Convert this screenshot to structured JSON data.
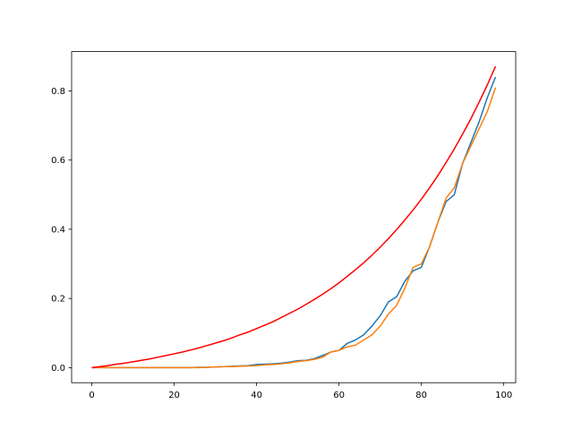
{
  "chart_data": {
    "type": "line",
    "x": [
      0,
      2,
      4,
      6,
      8,
      10,
      12,
      14,
      16,
      18,
      20,
      22,
      24,
      26,
      28,
      30,
      32,
      34,
      36,
      38,
      40,
      42,
      44,
      46,
      48,
      50,
      52,
      54,
      56,
      58,
      60,
      62,
      64,
      66,
      68,
      70,
      72,
      74,
      76,
      78,
      80,
      82,
      84,
      86,
      88,
      90,
      92,
      94,
      96,
      98
    ],
    "series": [
      {
        "color": "#1f77b4",
        "values": [
          0,
          0,
          0,
          0,
          0,
          0,
          0,
          0,
          0,
          0,
          0,
          0,
          0,
          0.001,
          0.001,
          0.002,
          0.003,
          0.004,
          0.005,
          0.006,
          0.009,
          0.01,
          0.011,
          0.013,
          0.016,
          0.02,
          0.021,
          0.026,
          0.035,
          0.045,
          0.05,
          0.07,
          0.08,
          0.095,
          0.12,
          0.15,
          0.19,
          0.205,
          0.25,
          0.28,
          0.29,
          0.35,
          0.42,
          0.48,
          0.5,
          0.59,
          0.65,
          0.71,
          0.78,
          0.84
        ]
      },
      {
        "color": "#ff7f0e",
        "values": [
          0,
          0,
          0,
          0,
          0,
          0,
          0,
          0,
          0,
          0,
          0,
          0,
          0,
          0,
          0.001,
          0.002,
          0.003,
          0.003,
          0.004,
          0.005,
          0.006,
          0.008,
          0.009,
          0.011,
          0.014,
          0.018,
          0.02,
          0.024,
          0.03,
          0.045,
          0.05,
          0.06,
          0.065,
          0.08,
          0.095,
          0.12,
          0.155,
          0.18,
          0.23,
          0.29,
          0.3,
          0.35,
          0.42,
          0.49,
          0.52,
          0.59,
          0.64,
          0.69,
          0.74,
          0.81
        ]
      },
      {
        "color": "#ff0000",
        "values": [
          0,
          0.003,
          0.006,
          0.01,
          0.013,
          0.017,
          0.021,
          0.025,
          0.03,
          0.035,
          0.04,
          0.045,
          0.051,
          0.057,
          0.064,
          0.071,
          0.078,
          0.086,
          0.095,
          0.103,
          0.113,
          0.123,
          0.133,
          0.145,
          0.157,
          0.169,
          0.183,
          0.197,
          0.212,
          0.228,
          0.245,
          0.264,
          0.283,
          0.303,
          0.325,
          0.348,
          0.373,
          0.399,
          0.427,
          0.456,
          0.487,
          0.52,
          0.555,
          0.593,
          0.632,
          0.675,
          0.719,
          0.767,
          0.817,
          0.871
        ]
      }
    ],
    "xlim": [
      -4.9,
      102.9
    ],
    "ylim": [
      -0.0435,
      0.9135
    ],
    "xticks": [
      0,
      20,
      40,
      60,
      80,
      100
    ],
    "yticks": [
      {
        "value": 0,
        "label": "0.0"
      },
      0.2,
      0.4,
      0.6,
      0.8
    ]
  }
}
